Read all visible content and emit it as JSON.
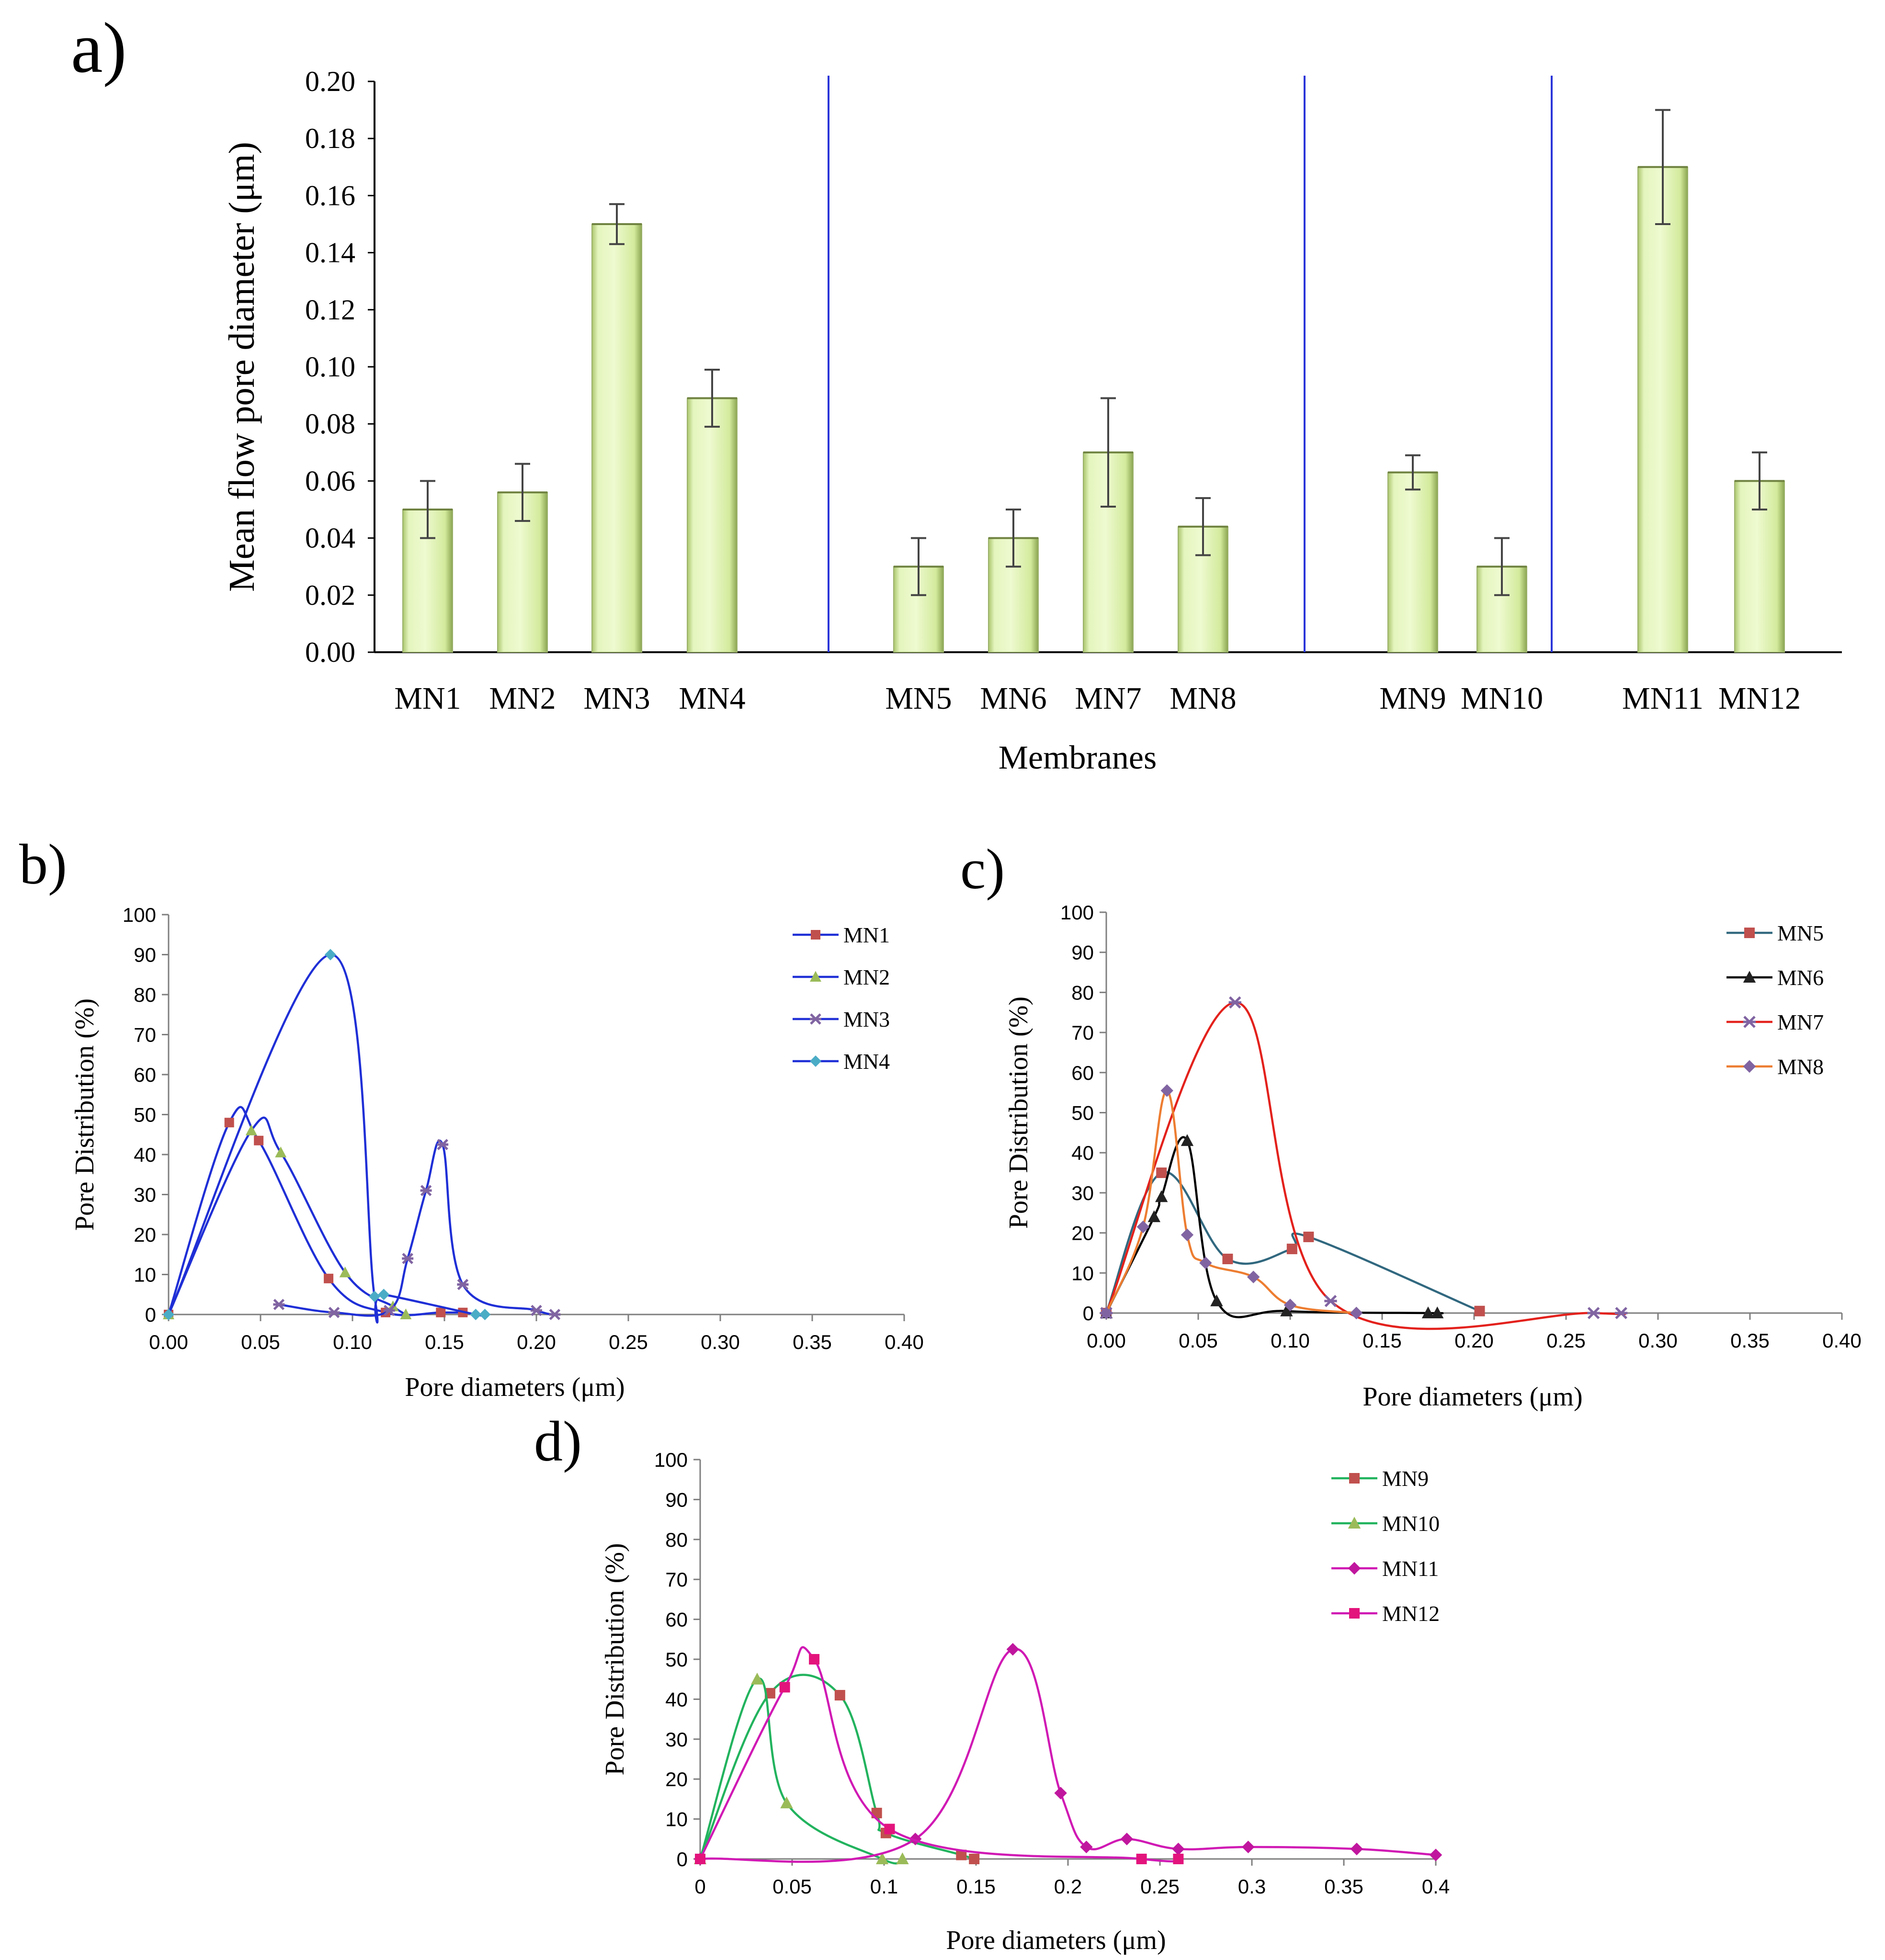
{
  "chart_data": [
    {
      "panel": "a)",
      "type": "bar",
      "xlabel": "Membranes",
      "ylabel": "Mean flow pore diameter (μm)",
      "ylim": [
        0,
        0.2
      ],
      "yticks": [
        "0.00",
        "0.02",
        "0.04",
        "0.06",
        "0.08",
        "0.10",
        "0.12",
        "0.14",
        "0.16",
        "0.18",
        "0.20"
      ],
      "categories": [
        "MN1",
        "MN2",
        "MN3",
        "MN4",
        "MN5",
        "MN6",
        "MN7",
        "MN8",
        "MN9",
        "MN10",
        "MN11",
        "MN12"
      ],
      "values": [
        0.05,
        0.056,
        0.15,
        0.089,
        0.03,
        0.04,
        0.07,
        0.044,
        0.063,
        0.03,
        0.17,
        0.06
      ],
      "errors": [
        0.01,
        0.01,
        0.007,
        0.01,
        0.01,
        0.01,
        0.019,
        0.01,
        0.006,
        0.01,
        0.02,
        0.01
      ],
      "groups": [
        [
          0,
          1,
          2,
          3
        ],
        [
          4,
          5,
          6,
          7
        ],
        [
          8,
          9
        ],
        [
          10,
          11
        ]
      ],
      "bar_color": "#d8efaa",
      "divider_color": "#2a35d8"
    },
    {
      "panel": "b)",
      "type": "line",
      "xlabel": "Pore diameters (μm)",
      "ylabel": "Pore Distribution (%)",
      "xlim": [
        0,
        0.4
      ],
      "ylim": [
        0,
        100
      ],
      "xticks": [
        "0.00",
        "0.05",
        "0.10",
        "0.15",
        "0.20",
        "0.25",
        "0.30",
        "0.35",
        "0.40"
      ],
      "yticks": [
        "0",
        "10",
        "20",
        "30",
        "40",
        "50",
        "60",
        "70",
        "80",
        "90",
        "100"
      ],
      "legend": "top-right",
      "series": [
        {
          "name": "MN1",
          "line_color": "#1f2fd6",
          "marker_color": "#c0504d",
          "marker": "square",
          "x": [
            0,
            0.033,
            0.049,
            0.087,
            0.118,
            0.148,
            0.16
          ],
          "y": [
            0,
            48,
            43.5,
            9,
            0.5,
            0.5,
            0.5
          ]
        },
        {
          "name": "MN2",
          "line_color": "#1f2fd6",
          "marker_color": "#9bbb59",
          "marker": "triangle",
          "x": [
            0,
            0.045,
            0.061,
            0.096,
            0.122,
            0.129
          ],
          "y": [
            0,
            46,
            40.5,
            10.5,
            2,
            0
          ]
        },
        {
          "name": "MN3",
          "line_color": "#1f2fd6",
          "marker_color": "#8064a2",
          "marker": "star",
          "x": [
            0.06,
            0.09,
            0.12,
            0.13,
            0.14,
            0.149,
            0.16,
            0.2,
            0.21
          ],
          "y": [
            2.5,
            0.5,
            1,
            14,
            31,
            42.5,
            7.5,
            1,
            0
          ]
        },
        {
          "name": "MN4",
          "line_color": "#1f2fd6",
          "marker_color": "#4bacc6",
          "marker": "diamond",
          "x": [
            0,
            0.088,
            0.112,
            0.117,
            0.167,
            0.172
          ],
          "y": [
            0,
            90,
            4.5,
            5,
            0,
            0
          ]
        }
      ]
    },
    {
      "panel": "c)",
      "type": "line",
      "xlabel": "Pore diameters (μm)",
      "ylabel": "Pore Distribution (%)",
      "xlim": [
        0,
        0.4
      ],
      "ylim": [
        0,
        100
      ],
      "xticks": [
        "0.00",
        "0.05",
        "0.10",
        "0.15",
        "0.20",
        "0.25",
        "0.30",
        "0.35",
        "0.40"
      ],
      "yticks": [
        "0",
        "10",
        "20",
        "30",
        "40",
        "50",
        "60",
        "70",
        "80",
        "90",
        "100"
      ],
      "legend": "top-right",
      "series": [
        {
          "name": "MN5",
          "line_color": "#31687f",
          "marker_color": "#c0504d",
          "marker": "square",
          "x": [
            0,
            0.03,
            0.066,
            0.101,
            0.11,
            0.203
          ],
          "y": [
            0,
            35,
            13.5,
            16,
            19,
            0.5
          ]
        },
        {
          "name": "MN6",
          "line_color": "#000000",
          "marker_color": "#222222",
          "marker": "triangle",
          "x": [
            0,
            0.026,
            0.03,
            0.044,
            0.06,
            0.098,
            0.175,
            0.18
          ],
          "y": [
            0,
            24,
            29,
            43,
            3,
            0.5,
            0,
            0
          ]
        },
        {
          "name": "MN7",
          "line_color": "#e3211c",
          "marker_color": "#8064a2",
          "marker": "star",
          "x": [
            0,
            0.07,
            0.122,
            0.265,
            0.28
          ],
          "y": [
            0,
            77.5,
            3,
            0,
            0
          ]
        },
        {
          "name": "MN8",
          "line_color": "#ed7d31",
          "marker_color": "#8064a2",
          "marker": "diamond",
          "x": [
            0,
            0.02,
            0.033,
            0.044,
            0.054,
            0.08,
            0.1,
            0.136
          ],
          "y": [
            0,
            21.5,
            55.5,
            19.5,
            12.5,
            9,
            2,
            0
          ]
        }
      ]
    },
    {
      "panel": "d)",
      "type": "line",
      "xlabel": "Pore diameters (μm)",
      "ylabel": "Pore Distribution (%)",
      "xlim": [
        0,
        0.4
      ],
      "ylim": [
        0,
        100
      ],
      "xticks": [
        "0",
        "0.05",
        "0.1",
        "0.15",
        "0.2",
        "0.25",
        "0.3",
        "0.35",
        "0.4"
      ],
      "yticks": [
        "0",
        "10",
        "20",
        "30",
        "40",
        "50",
        "60",
        "70",
        "80",
        "90",
        "100"
      ],
      "legend": "top-right",
      "series": [
        {
          "name": "MN9",
          "line_color": "#22b35e",
          "marker_color": "#c0504d",
          "marker": "square",
          "x": [
            0,
            0.038,
            0.076,
            0.096,
            0.101,
            0.142,
            0.149
          ],
          "y": [
            0,
            41.5,
            41,
            11.5,
            6.5,
            1,
            0
          ]
        },
        {
          "name": "MN10",
          "line_color": "#22b35e",
          "marker_color": "#9bbb59",
          "marker": "triangle",
          "x": [
            0,
            0.031,
            0.047,
            0.099,
            0.11
          ],
          "y": [
            0,
            45,
            14,
            0,
            0
          ]
        },
        {
          "name": "MN11",
          "line_color": "#d019b4",
          "marker_color": "#c0169e",
          "marker": "diamond",
          "x": [
            0,
            0.117,
            0.17,
            0.196,
            0.21,
            0.232,
            0.26,
            0.298,
            0.357,
            0.4
          ],
          "y": [
            0,
            5,
            52.5,
            16.5,
            3,
            5,
            2.5,
            3,
            2.5,
            1
          ]
        },
        {
          "name": "MN12",
          "line_color": "#d019b4",
          "marker_color": "#e3147c",
          "marker": "square",
          "x": [
            0,
            0.046,
            0.062,
            0.103,
            0.24,
            0.26
          ],
          "y": [
            0,
            43,
            50,
            7.5,
            0,
            0
          ]
        }
      ]
    }
  ]
}
